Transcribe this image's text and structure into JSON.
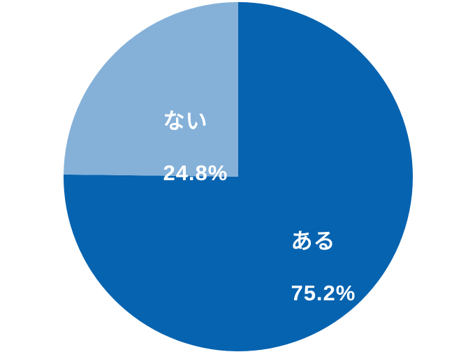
{
  "chart_data": {
    "type": "pie",
    "title": "",
    "start_angle_deg": 0,
    "direction": "clockwise",
    "background_color": "#ffffff",
    "label_color": "#ffffff",
    "slices": [
      {
        "label": "ある",
        "value": 75.2,
        "percent_label": "75.2%",
        "color": "#0663b0"
      },
      {
        "label": "ない",
        "value": 24.8,
        "percent_label": "24.8%",
        "color": "#85b1d9"
      }
    ]
  }
}
